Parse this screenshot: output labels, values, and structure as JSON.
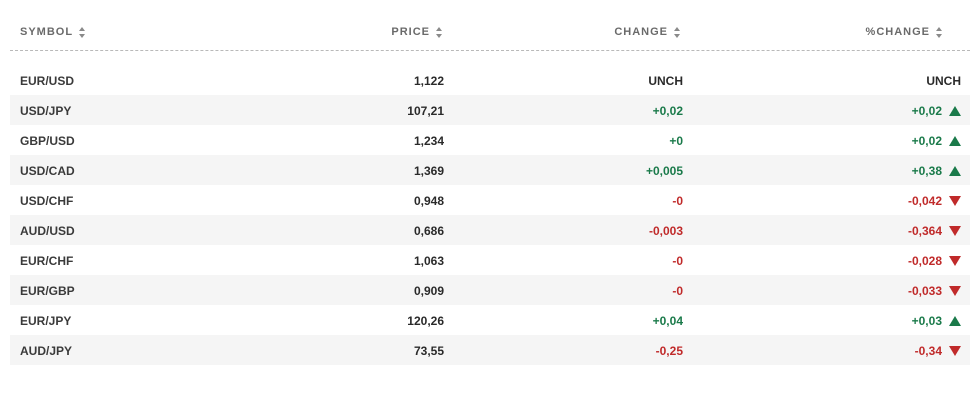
{
  "headers": {
    "symbol": "SYMBOL",
    "price": "PRICE",
    "change": "CHANGE",
    "pct_change": "%CHANGE"
  },
  "colors": {
    "positive": "#1a7a4a",
    "negative": "#c02a2a",
    "stripe": "#f5f5f5"
  },
  "rows": [
    {
      "symbol": "EUR/USD",
      "price": "1,122",
      "change": "UNCH",
      "pct_change": "UNCH",
      "direction": "neutral"
    },
    {
      "symbol": "USD/JPY",
      "price": "107,21",
      "change": "+0,02",
      "pct_change": "+0,02",
      "direction": "up"
    },
    {
      "symbol": "GBP/USD",
      "price": "1,234",
      "change": "+0",
      "pct_change": "+0,02",
      "direction": "up"
    },
    {
      "symbol": "USD/CAD",
      "price": "1,369",
      "change": "+0,005",
      "pct_change": "+0,38",
      "direction": "up"
    },
    {
      "symbol": "USD/CHF",
      "price": "0,948",
      "change": "-0",
      "pct_change": "-0,042",
      "direction": "down"
    },
    {
      "symbol": "AUD/USD",
      "price": "0,686",
      "change": "-0,003",
      "pct_change": "-0,364",
      "direction": "down"
    },
    {
      "symbol": "EUR/CHF",
      "price": "1,063",
      "change": "-0",
      "pct_change": "-0,028",
      "direction": "down"
    },
    {
      "symbol": "EUR/GBP",
      "price": "0,909",
      "change": "-0",
      "pct_change": "-0,033",
      "direction": "down"
    },
    {
      "symbol": "EUR/JPY",
      "price": "120,26",
      "change": "+0,04",
      "pct_change": "+0,03",
      "direction": "up"
    },
    {
      "symbol": "AUD/JPY",
      "price": "73,55",
      "change": "-0,25",
      "pct_change": "-0,34",
      "direction": "down"
    }
  ]
}
